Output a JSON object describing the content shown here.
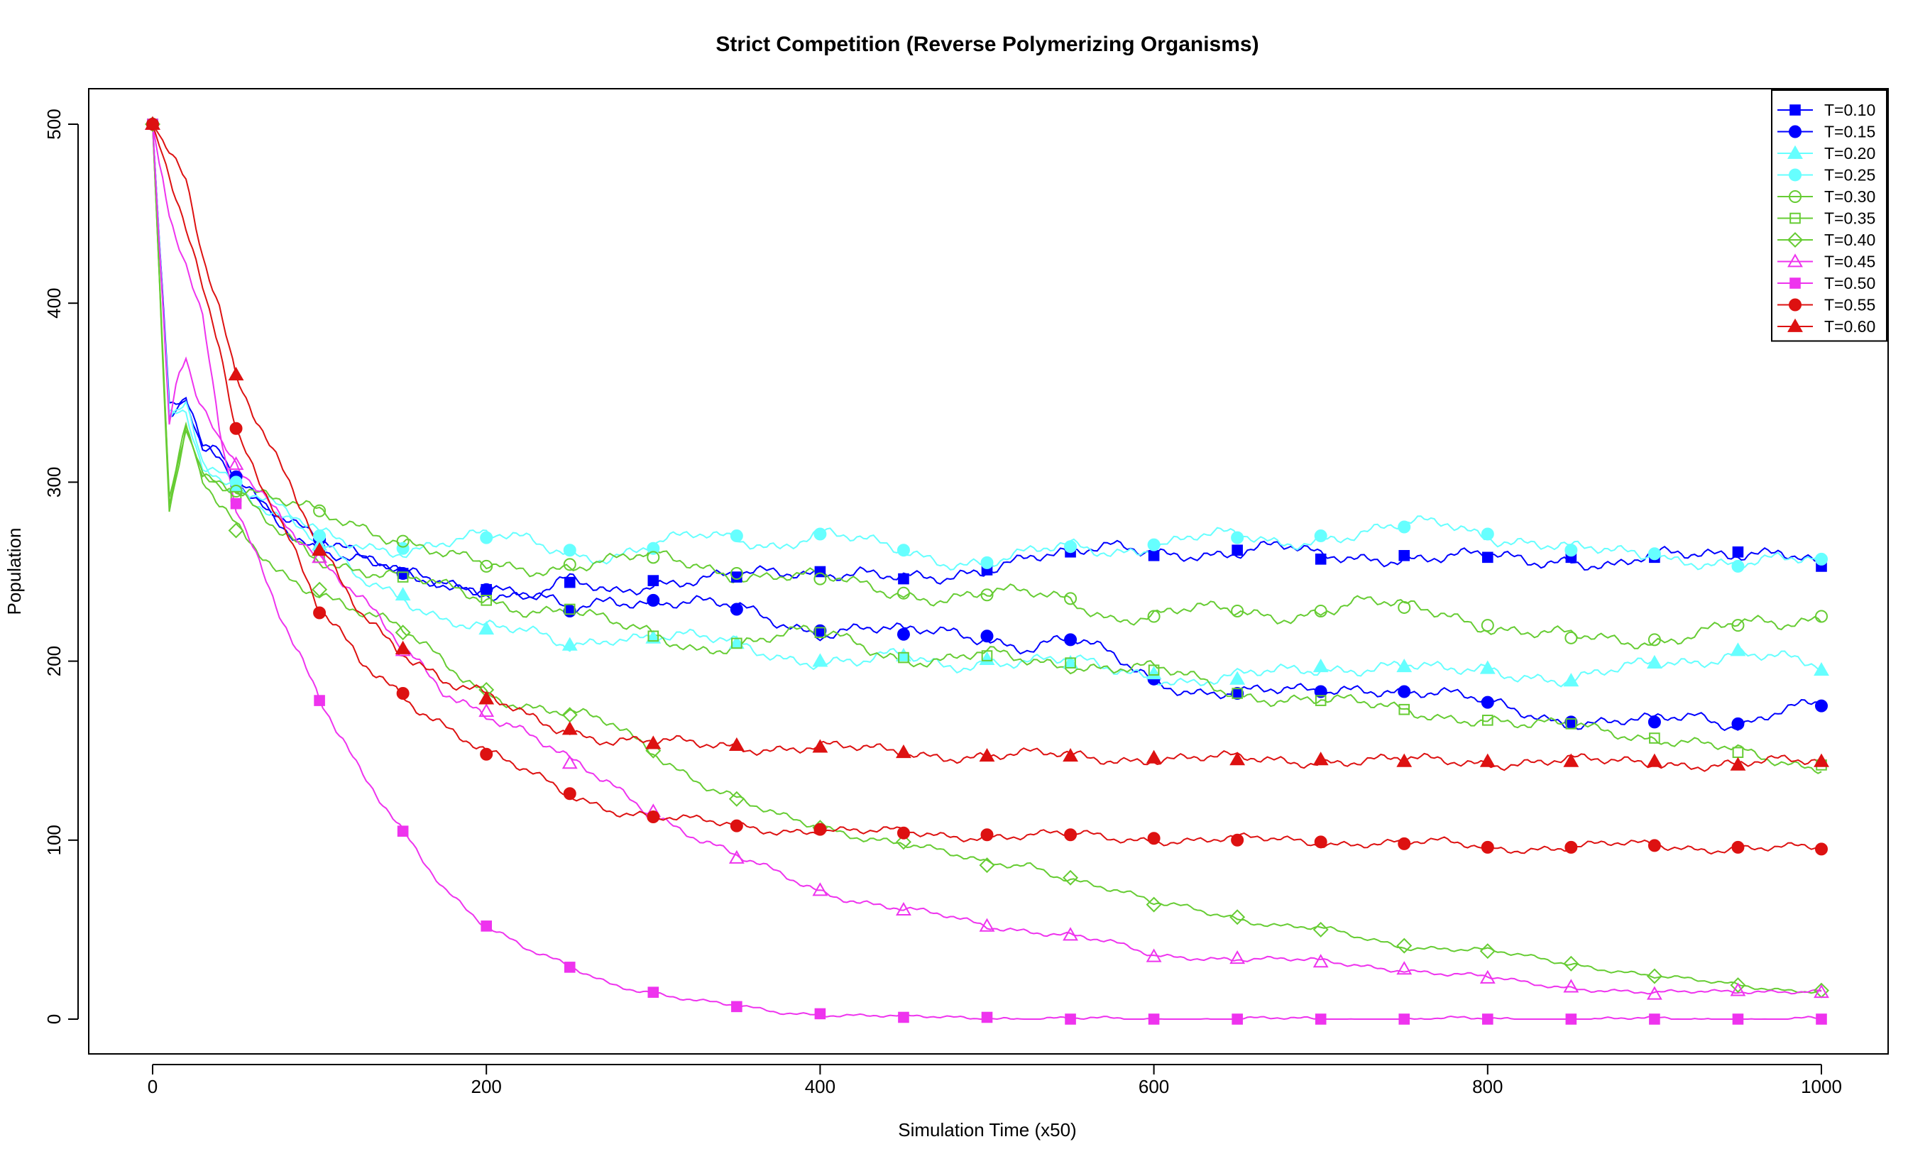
{
  "chart_data": {
    "type": "line",
    "title": "Strict Competition (Reverse Polymerizing Organisms)",
    "xlabel": "Simulation Time (x50)",
    "ylabel": "Population",
    "xlim": [
      0,
      1000
    ],
    "ylim": [
      0,
      500
    ],
    "x_ticks": [
      0,
      200,
      400,
      600,
      800,
      1000
    ],
    "y_ticks": [
      0,
      100,
      200,
      300,
      400,
      500
    ],
    "grid": false,
    "legend_position": "top-right",
    "series": [
      {
        "name": "T=0.10",
        "color": "#0000ff",
        "marker": "square-filled",
        "x": [
          0,
          10,
          20,
          30,
          40,
          50,
          75,
          100,
          125,
          150,
          175,
          200,
          225,
          250,
          275,
          300,
          325,
          350,
          375,
          400,
          425,
          450,
          475,
          500,
          525,
          550,
          575,
          600,
          625,
          650,
          675,
          700,
          725,
          750,
          775,
          800,
          825,
          850,
          875,
          900,
          925,
          950,
          975,
          1000
        ],
        "y": [
          500,
          340,
          345,
          315,
          315,
          300,
          280,
          262,
          255,
          249,
          244,
          240,
          234,
          244,
          238,
          245,
          246,
          247,
          248,
          250,
          252,
          246,
          243,
          251,
          262,
          261,
          262,
          259,
          261,
          262,
          264,
          257,
          258,
          259,
          258,
          258,
          255,
          258,
          254,
          258,
          258,
          261,
          264,
          253
        ]
      },
      {
        "name": "T=0.15",
        "color": "#0000ff",
        "marker": "circle-filled",
        "x": [
          0,
          10,
          20,
          30,
          40,
          50,
          75,
          100,
          125,
          150,
          175,
          200,
          225,
          250,
          275,
          300,
          325,
          350,
          375,
          400,
          425,
          450,
          475,
          500,
          525,
          550,
          575,
          600,
          625,
          650,
          675,
          700,
          725,
          750,
          775,
          800,
          825,
          850,
          875,
          900,
          925,
          950,
          975,
          1000
        ],
        "y": [
          500,
          335,
          345,
          318,
          315,
          303,
          285,
          268,
          256,
          249,
          246,
          240,
          236,
          228,
          236,
          234,
          232,
          229,
          222,
          217,
          219,
          215,
          216,
          214,
          208,
          212,
          202,
          190,
          184,
          182,
          182,
          183,
          187,
          183,
          180,
          177,
          172,
          166,
          165,
          166,
          170,
          165,
          173,
          175
        ]
      },
      {
        "name": "T=0.20",
        "color": "#66ffff",
        "marker": "triangle-filled",
        "x": [
          0,
          10,
          20,
          30,
          40,
          50,
          75,
          100,
          125,
          150,
          175,
          200,
          225,
          250,
          275,
          300,
          325,
          350,
          375,
          400,
          425,
          450,
          475,
          500,
          525,
          550,
          575,
          600,
          625,
          650,
          675,
          700,
          725,
          750,
          775,
          800,
          825,
          850,
          875,
          900,
          925,
          950,
          975,
          1000
        ],
        "y": [
          500,
          335,
          342,
          312,
          305,
          298,
          282,
          265,
          245,
          237,
          224,
          218,
          215,
          209,
          215,
          213,
          212,
          210,
          204,
          200,
          198,
          203,
          198,
          201,
          199,
          199,
          196,
          193,
          188,
          190,
          194,
          197,
          197,
          197,
          193,
          196,
          193,
          189,
          193,
          199,
          201,
          206,
          201,
          195
        ]
      },
      {
        "name": "T=0.25",
        "color": "#66ffff",
        "marker": "circle-filled",
        "x": [
          0,
          10,
          20,
          30,
          40,
          50,
          75,
          100,
          125,
          150,
          175,
          200,
          225,
          250,
          275,
          300,
          325,
          350,
          375,
          400,
          425,
          450,
          475,
          500,
          525,
          550,
          575,
          600,
          625,
          650,
          675,
          700,
          725,
          750,
          775,
          800,
          825,
          850,
          875,
          900,
          925,
          950,
          975,
          1000
        ],
        "y": [
          500,
          338,
          340,
          312,
          308,
          300,
          285,
          270,
          265,
          263,
          266,
          269,
          268,
          262,
          258,
          263,
          270,
          270,
          265,
          271,
          266,
          262,
          257,
          255,
          259,
          264,
          262,
          265,
          269,
          269,
          266,
          270,
          271,
          275,
          277,
          271,
          267,
          262,
          260,
          260,
          257,
          253,
          255,
          257
        ]
      },
      {
        "name": "T=0.30",
        "color": "#66cc33",
        "marker": "circle-open",
        "x": [
          0,
          10,
          20,
          30,
          40,
          50,
          75,
          100,
          125,
          150,
          175,
          200,
          225,
          250,
          275,
          300,
          325,
          350,
          375,
          400,
          425,
          450,
          475,
          500,
          525,
          550,
          575,
          600,
          625,
          650,
          675,
          700,
          725,
          750,
          775,
          800,
          825,
          850,
          875,
          900,
          925,
          950,
          975,
          1000
        ],
        "y": [
          500,
          290,
          335,
          305,
          300,
          295,
          288,
          284,
          277,
          267,
          258,
          253,
          252,
          254,
          256,
          258,
          254,
          249,
          248,
          246,
          242,
          238,
          236,
          237,
          237,
          235,
          225,
          225,
          228,
          228,
          226,
          228,
          232,
          230,
          228,
          220,
          215,
          213,
          212,
          212,
          216,
          220,
          219,
          225
        ]
      },
      {
        "name": "T=0.35",
        "color": "#66cc33",
        "marker": "square-open",
        "x": [
          0,
          10,
          20,
          30,
          40,
          50,
          75,
          100,
          125,
          150,
          175,
          200,
          225,
          250,
          275,
          300,
          325,
          350,
          375,
          400,
          425,
          450,
          475,
          500,
          525,
          550,
          575,
          600,
          625,
          650,
          675,
          700,
          725,
          750,
          775,
          800,
          825,
          850,
          875,
          900,
          925,
          950,
          975,
          1000
        ],
        "y": [
          500,
          288,
          332,
          303,
          298,
          292,
          272,
          258,
          252,
          247,
          240,
          234,
          230,
          229,
          220,
          214,
          208,
          210,
          213,
          216,
          210,
          202,
          200,
          203,
          200,
          199,
          197,
          195,
          189,
          182,
          180,
          178,
          175,
          173,
          170,
          167,
          162,
          165,
          162,
          157,
          153,
          149,
          144,
          142
        ]
      },
      {
        "name": "T=0.40",
        "color": "#66cc33",
        "marker": "diamond-open",
        "x": [
          0,
          10,
          20,
          30,
          40,
          50,
          75,
          100,
          125,
          150,
          175,
          200,
          225,
          250,
          275,
          300,
          325,
          350,
          375,
          400,
          425,
          450,
          475,
          500,
          525,
          550,
          575,
          600,
          625,
          650,
          675,
          700,
          725,
          750,
          775,
          800,
          825,
          850,
          875,
          900,
          925,
          950,
          975,
          1000
        ],
        "y": [
          500,
          292,
          330,
          300,
          285,
          273,
          250,
          240,
          228,
          216,
          198,
          184,
          175,
          170,
          164,
          150,
          135,
          123,
          112,
          107,
          103,
          99,
          92,
          86,
          87,
          79,
          72,
          64,
          62,
          57,
          52,
          50,
          45,
          41,
          40,
          38,
          34,
          31,
          28,
          24,
          21,
          19,
          17,
          16
        ]
      },
      {
        "name": "T=0.45",
        "color": "#ee33ee",
        "marker": "triangle-open",
        "x": [
          0,
          10,
          15,
          20,
          25,
          30,
          40,
          50,
          75,
          100,
          125,
          150,
          175,
          200,
          225,
          250,
          275,
          300,
          325,
          350,
          375,
          400,
          425,
          450,
          475,
          500,
          525,
          550,
          575,
          600,
          625,
          650,
          675,
          700,
          725,
          750,
          775,
          800,
          825,
          850,
          875,
          900,
          925,
          950,
          975,
          1000
        ],
        "y": [
          500,
          330,
          355,
          368,
          350,
          340,
          320,
          310,
          285,
          258,
          233,
          206,
          184,
          172,
          159,
          143,
          131,
          116,
          102,
          90,
          81,
          72,
          66,
          61,
          57,
          52,
          50,
          47,
          42,
          35,
          35,
          34,
          33,
          32,
          30,
          28,
          25,
          23,
          20,
          18,
          16,
          14,
          15,
          16,
          16,
          15
        ]
      },
      {
        "name": "T=0.50",
        "color": "#ee33ee",
        "marker": "square-filled",
        "x": [
          0,
          10,
          20,
          30,
          40,
          50,
          75,
          100,
          125,
          150,
          175,
          200,
          225,
          250,
          275,
          300,
          325,
          350,
          375,
          400,
          425,
          450,
          500,
          550,
          600,
          650,
          700,
          750,
          800,
          850,
          900,
          950,
          1000
        ],
        "y": [
          500,
          445,
          420,
          390,
          330,
          288,
          232,
          178,
          135,
          105,
          74,
          52,
          38,
          29,
          20,
          15,
          10,
          7,
          4,
          3,
          2,
          1,
          1,
          0,
          0,
          0,
          0,
          0,
          0,
          0,
          0,
          0,
          0
        ]
      },
      {
        "name": "T=0.55",
        "color": "#dd1111",
        "marker": "circle-filled",
        "x": [
          0,
          10,
          20,
          30,
          40,
          50,
          75,
          100,
          125,
          150,
          175,
          200,
          225,
          250,
          275,
          300,
          325,
          350,
          375,
          400,
          425,
          450,
          475,
          500,
          525,
          550,
          575,
          600,
          625,
          650,
          675,
          700,
          725,
          750,
          775,
          800,
          825,
          850,
          875,
          900,
          925,
          950,
          975,
          1000
        ],
        "y": [
          500,
          470,
          440,
          410,
          380,
          330,
          282,
          227,
          199,
          182,
          165,
          148,
          137,
          126,
          118,
          113,
          110,
          108,
          106,
          106,
          104,
          104,
          103,
          103,
          102,
          103,
          101,
          101,
          100,
          100,
          100,
          99,
          99,
          98,
          98,
          96,
          96,
          96,
          97,
          97,
          96,
          96,
          95,
          95
        ]
      },
      {
        "name": "T=0.60",
        "color": "#dd1111",
        "marker": "triangle-filled",
        "x": [
          0,
          10,
          20,
          30,
          40,
          50,
          75,
          100,
          125,
          150,
          175,
          200,
          225,
          250,
          275,
          300,
          325,
          350,
          375,
          400,
          425,
          450,
          475,
          500,
          525,
          550,
          575,
          600,
          625,
          650,
          675,
          700,
          725,
          750,
          775,
          800,
          825,
          850,
          875,
          900,
          925,
          950,
          975,
          1000
        ],
        "y": [
          500,
          485,
          470,
          430,
          400,
          360,
          310,
          262,
          228,
          207,
          188,
          179,
          169,
          162,
          156,
          154,
          153,
          153,
          152,
          152,
          150,
          149,
          148,
          147,
          147,
          147,
          146,
          146,
          145,
          145,
          145,
          145,
          144,
          144,
          144,
          144,
          144,
          144,
          143,
          144,
          143,
          142,
          143,
          144
        ]
      }
    ]
  }
}
